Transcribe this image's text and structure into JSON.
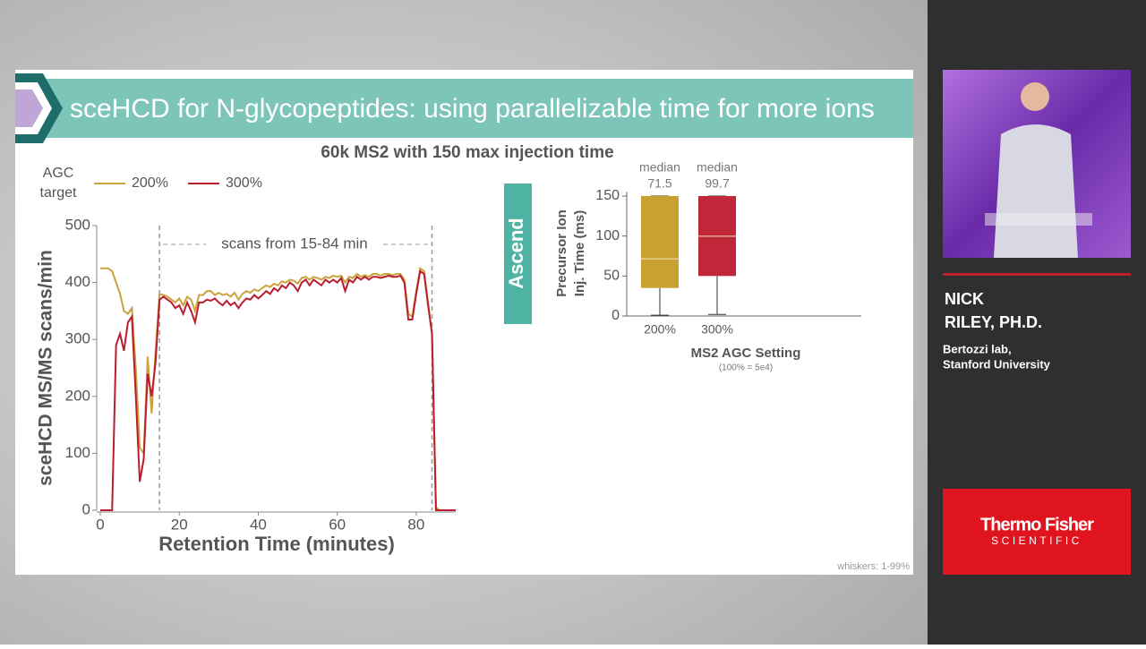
{
  "slide": {
    "title": "sceHCD for N-glycopeptides: using parallelizable time for more ions",
    "subtitle": "60k MS2 with 150 max injection time",
    "badge": "Ascend",
    "footnote": "whiskers: 1-99%"
  },
  "speaker": {
    "name_lines": [
      "NICK",
      "RILEY, PH.D."
    ],
    "affiliation_lines": [
      "Bertozzi lab,",
      "Stanford University"
    ]
  },
  "logo": {
    "brand": "Thermo Fisher",
    "sub": "SCIENTIFIC"
  },
  "chart_data": [
    {
      "type": "line",
      "legend_title_lines": [
        "AGC",
        "target"
      ],
      "x_label": "Retention Time (minutes)",
      "y_label": "sceHCD MS/MS scans/min",
      "annotation": "scans from 15-84 min",
      "vlines": [
        15,
        84
      ],
      "x": [
        0,
        1,
        2,
        3,
        4,
        5,
        6,
        7,
        8,
        9,
        10,
        11,
        12,
        13,
        14,
        15,
        16,
        17,
        18,
        19,
        20,
        21,
        22,
        23,
        24,
        25,
        26,
        27,
        28,
        29,
        30,
        31,
        32,
        33,
        34,
        35,
        36,
        37,
        38,
        39,
        40,
        41,
        42,
        43,
        44,
        45,
        46,
        47,
        48,
        49,
        50,
        51,
        52,
        53,
        54,
        55,
        56,
        57,
        58,
        59,
        60,
        61,
        62,
        63,
        64,
        65,
        66,
        67,
        68,
        69,
        70,
        71,
        72,
        73,
        74,
        75,
        76,
        77,
        78,
        79,
        80,
        81,
        82,
        83,
        84,
        85,
        86,
        87,
        88,
        89,
        90
      ],
      "series": [
        {
          "name": "200%",
          "color": "#c9a43c",
          "values": [
            425,
            425,
            425,
            420,
            400,
            380,
            350,
            345,
            355,
            250,
            110,
            100,
            270,
            170,
            280,
            380,
            378,
            375,
            370,
            365,
            372,
            360,
            375,
            370,
            350,
            378,
            378,
            385,
            385,
            378,
            382,
            378,
            380,
            375,
            382,
            370,
            380,
            385,
            382,
            388,
            385,
            390,
            395,
            392,
            398,
            395,
            402,
            400,
            405,
            403,
            398,
            408,
            410,
            405,
            410,
            408,
            405,
            410,
            408,
            412,
            410,
            412,
            400,
            410,
            408,
            415,
            410,
            413,
            410,
            415,
            415,
            412,
            415,
            415,
            413,
            415,
            415,
            405,
            345,
            340,
            385,
            425,
            420,
            365,
            310,
            5,
            0,
            0,
            0,
            0,
            0
          ]
        },
        {
          "name": "300%",
          "color": "#b81e30",
          "values": [
            0,
            0,
            0,
            0,
            290,
            310,
            280,
            330,
            340,
            200,
            50,
            90,
            240,
            200,
            260,
            370,
            375,
            370,
            365,
            355,
            360,
            345,
            365,
            350,
            330,
            365,
            365,
            370,
            368,
            372,
            365,
            360,
            368,
            360,
            365,
            355,
            365,
            372,
            370,
            378,
            372,
            378,
            385,
            380,
            390,
            385,
            395,
            390,
            400,
            395,
            385,
            400,
            405,
            395,
            405,
            400,
            395,
            405,
            400,
            405,
            400,
            408,
            385,
            405,
            400,
            410,
            405,
            410,
            405,
            410,
            410,
            408,
            410,
            412,
            410,
            410,
            412,
            400,
            335,
            335,
            380,
            420,
            415,
            360,
            310,
            0,
            0,
            0,
            0,
            0,
            0
          ]
        }
      ],
      "xlim": [
        0,
        90
      ],
      "xticks": [
        0,
        20,
        40,
        60,
        80
      ],
      "ylim": [
        0,
        500
      ],
      "yticks": [
        0,
        100,
        200,
        300,
        400,
        500
      ]
    },
    {
      "type": "box",
      "categories": [
        "200%",
        "300%"
      ],
      "median_label": "median",
      "y_label_lines": [
        "Precursor Ion",
        "Inj. Time (ms)"
      ],
      "x_label": "MS2 AGC Setting",
      "x_note": "(100% = 5e4)",
      "ylim": [
        0,
        155
      ],
      "yticks": [
        0,
        50,
        100,
        150
      ],
      "boxes": [
        {
          "color": "#c9a032",
          "min": 1,
          "q1": 35,
          "median": 71.5,
          "q3": 150,
          "max": 150
        },
        {
          "color": "#c0283a",
          "min": 2,
          "q1": 50,
          "median": 99.7,
          "q3": 150,
          "max": 150
        }
      ]
    }
  ]
}
